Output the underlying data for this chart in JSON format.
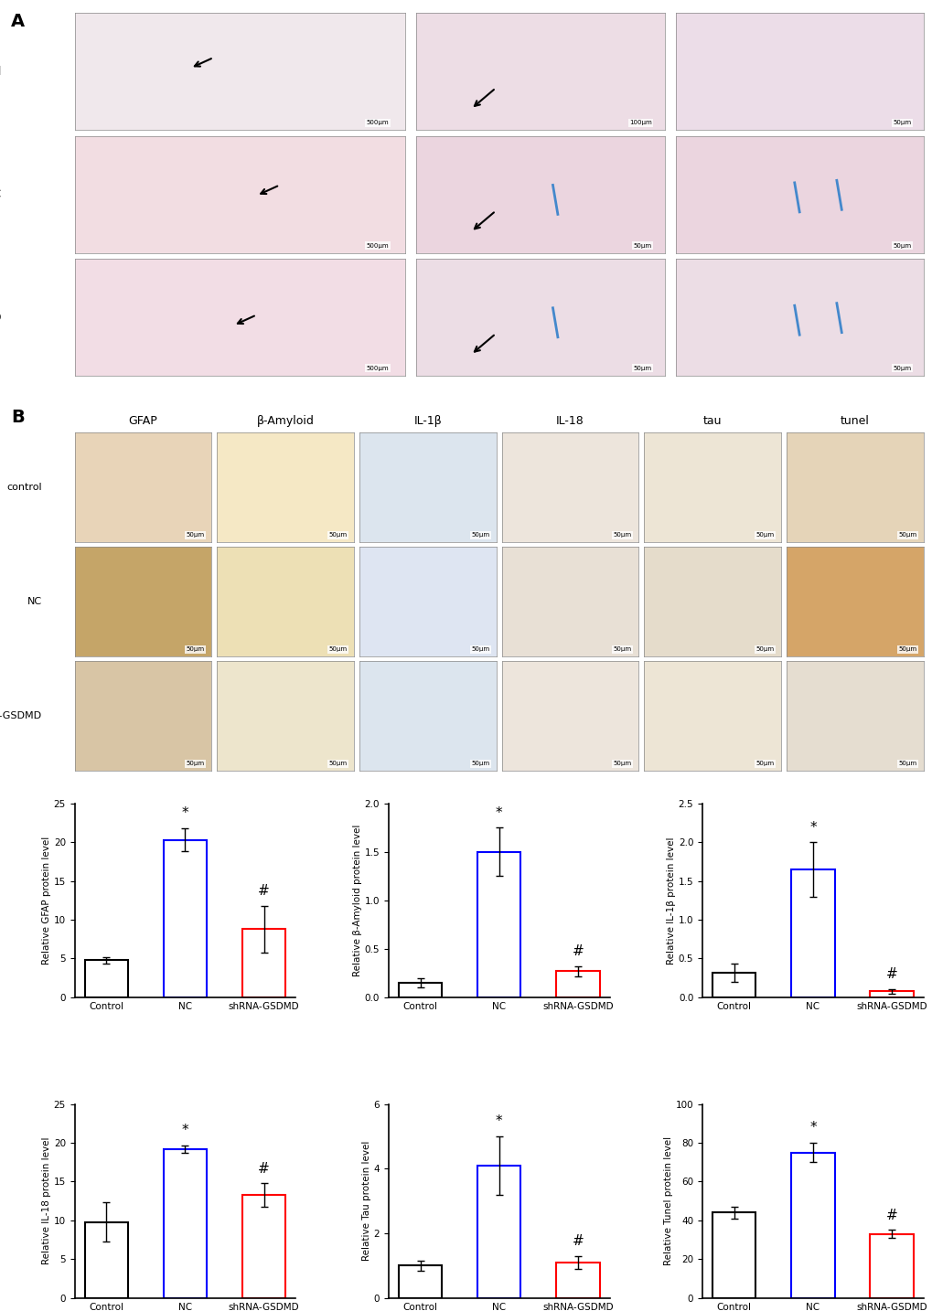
{
  "panel_A_label": "A",
  "panel_B_label": "B",
  "row_labels_A": [
    "control",
    "NC",
    "shRNA-GSDMD"
  ],
  "col_labels_B": [
    "GFAP",
    "β-Amyloid",
    "IL-1β",
    "IL-18",
    "tau",
    "tunel"
  ],
  "row_labels_B": [
    "control",
    "NC",
    "shRNA-GSDMD"
  ],
  "bar_groups": [
    "Control",
    "NC",
    "shRNA-GSDMD"
  ],
  "bar_colors": [
    "#000000",
    "#0000FF",
    "#FF0000"
  ],
  "charts": [
    {
      "ylabel": "Relative GFAP protein level",
      "ylim": [
        0,
        25
      ],
      "yticks": [
        0,
        5,
        10,
        15,
        20,
        25
      ],
      "values": [
        4.8,
        20.3,
        8.8
      ],
      "errors": [
        0.4,
        1.5,
        3.0
      ],
      "sig_above": [
        null,
        "*",
        "#"
      ]
    },
    {
      "ylabel": "Relative β-Amyloid protein level",
      "ylim": [
        0.0,
        2.0
      ],
      "yticks": [
        0.0,
        0.5,
        1.0,
        1.5,
        2.0
      ],
      "values": [
        0.15,
        1.5,
        0.27
      ],
      "errors": [
        0.05,
        0.25,
        0.05
      ],
      "sig_above": [
        null,
        "*",
        "#"
      ]
    },
    {
      "ylabel": "Relative IL-1β protein level",
      "ylim": [
        0.0,
        2.5
      ],
      "yticks": [
        0.0,
        0.5,
        1.0,
        1.5,
        2.0,
        2.5
      ],
      "values": [
        0.32,
        1.65,
        0.08
      ],
      "errors": [
        0.12,
        0.35,
        0.03
      ],
      "sig_above": [
        null,
        "*",
        "#"
      ]
    },
    {
      "ylabel": "Relative IL-18 protein level",
      "ylim": [
        0,
        25
      ],
      "yticks": [
        0,
        5,
        10,
        15,
        20,
        25
      ],
      "values": [
        9.8,
        19.2,
        13.3
      ],
      "errors": [
        2.5,
        0.5,
        1.5
      ],
      "sig_above": [
        null,
        "*",
        "#"
      ]
    },
    {
      "ylabel": "Relative Tau protein level",
      "ylim": [
        0,
        6
      ],
      "yticks": [
        0,
        2,
        4,
        6
      ],
      "values": [
        1.0,
        4.1,
        1.1
      ],
      "errors": [
        0.15,
        0.9,
        0.2
      ],
      "sig_above": [
        null,
        "*",
        "#"
      ]
    },
    {
      "ylabel": "Relative Tunel protein level",
      "ylim": [
        0,
        100
      ],
      "yticks": [
        0,
        20,
        40,
        60,
        80,
        100
      ],
      "values": [
        44.0,
        75.0,
        33.0
      ],
      "errors": [
        3.0,
        5.0,
        2.0
      ],
      "sig_above": [
        null,
        "*",
        "#"
      ]
    }
  ],
  "he_colors": [
    [
      "#f0e8ec",
      "#eddde5",
      "#ecdde8"
    ],
    [
      "#f2dde2",
      "#ebd5df",
      "#ebd5df"
    ],
    [
      "#f2dde5",
      "#ecdde5",
      "#ecdde5"
    ]
  ],
  "ihc_colors": [
    [
      "#e8d4b8",
      "#f5e8c5",
      "#dce5ee",
      "#ede5dc",
      "#ede5d5",
      "#e5d4b8"
    ],
    [
      "#c5a568",
      "#ede0b5",
      "#dee5f2",
      "#e8e0d5",
      "#e5dccb",
      "#d5a568"
    ],
    [
      "#d8c5a5",
      "#ede5cc",
      "#dce5ee",
      "#ede5dc",
      "#ede5d5",
      "#e5ddd0"
    ]
  ],
  "scale_texts_A": [
    [
      "500μm",
      "100μm",
      "50μm"
    ],
    [
      "500μm",
      "50μm",
      "50μm"
    ],
    [
      "500μm",
      "50μm",
      "50μm"
    ]
  ]
}
